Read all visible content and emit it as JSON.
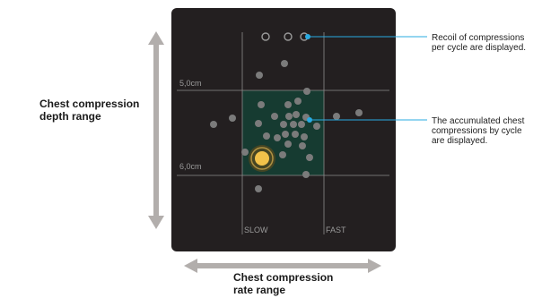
{
  "panel": {
    "depth_top_label": "5,0cm",
    "depth_bottom_label": "6,0cm",
    "rate_left_label": "SLOW",
    "rate_right_label": "FAST"
  },
  "labels": {
    "depth_range": "Chest compression\ndepth range",
    "rate_range": "Chest compression\nrate range"
  },
  "annotations": {
    "recoil": "Recoil of compressions\nper cycle are displayed.",
    "accumulated": "The accumulated chest\ncompressions by cycle\nare displayed."
  },
  "colors": {
    "panel_bg": "#231f20",
    "target_zone": "#163b31",
    "dot_gray": "#7b7b7b",
    "current_dot": "#f2c24a",
    "callout_line": "#29abe2",
    "arrow_gray": "#b2aeac"
  }
}
